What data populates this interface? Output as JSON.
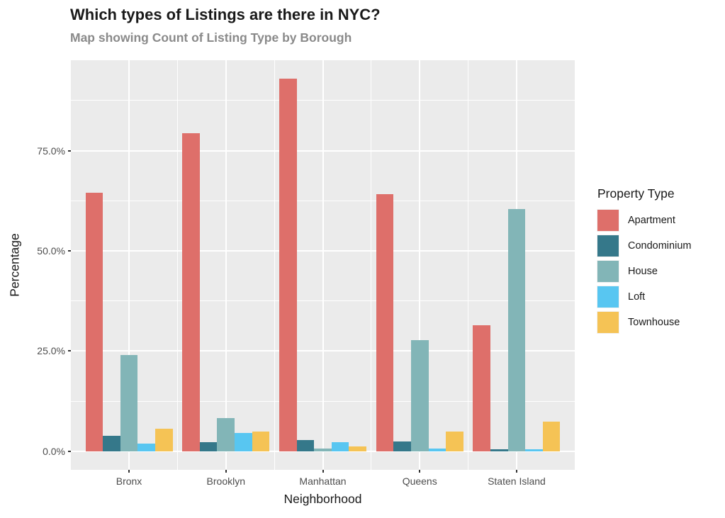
{
  "chart_data": {
    "type": "bar",
    "title": "Which types of Listings are there in NYC?",
    "subtitle": "Map showing Count of Listing Type by Borough",
    "xlabel": "Neighborhood",
    "ylabel": "Percentage",
    "legend_title": "Property Type",
    "legend_position": "right",
    "grid": true,
    "categories": [
      "Bronx",
      "Brooklyn",
      "Manhattan",
      "Queens",
      "Staten Island"
    ],
    "series": [
      {
        "name": "Apartment",
        "color": "#DE6F6A",
        "values": [
          64.5,
          79.3,
          92.9,
          64.2,
          31.4
        ]
      },
      {
        "name": "Condominium",
        "color": "#35788A",
        "values": [
          3.8,
          2.3,
          2.8,
          2.5,
          0.5
        ]
      },
      {
        "name": "House",
        "color": "#82B5B7",
        "values": [
          24.0,
          8.3,
          0.7,
          27.8,
          60.4
        ]
      },
      {
        "name": "Loft",
        "color": "#58C6F1",
        "values": [
          1.9,
          4.6,
          2.3,
          0.7,
          0.4
        ]
      },
      {
        "name": "Townhouse",
        "color": "#F5C355",
        "values": [
          5.6,
          4.9,
          1.2,
          4.9,
          7.3
        ]
      }
    ],
    "yticks": [
      0,
      25,
      50,
      75
    ],
    "ytick_labels": [
      "0.0%",
      "25.0%",
      "50.0%",
      "75.0%"
    ],
    "y_minor_ticks": [
      12.5,
      37.5,
      62.5,
      87.5
    ],
    "ylim": [
      0,
      92.9
    ]
  },
  "colors": {
    "panel_bg": "#EBEBEB",
    "gridline": "#FFFFFF",
    "axis_text": "#4D4D4D",
    "tick_mark": "#333333",
    "title": "#191919",
    "subtitle": "#8A8A8A"
  }
}
